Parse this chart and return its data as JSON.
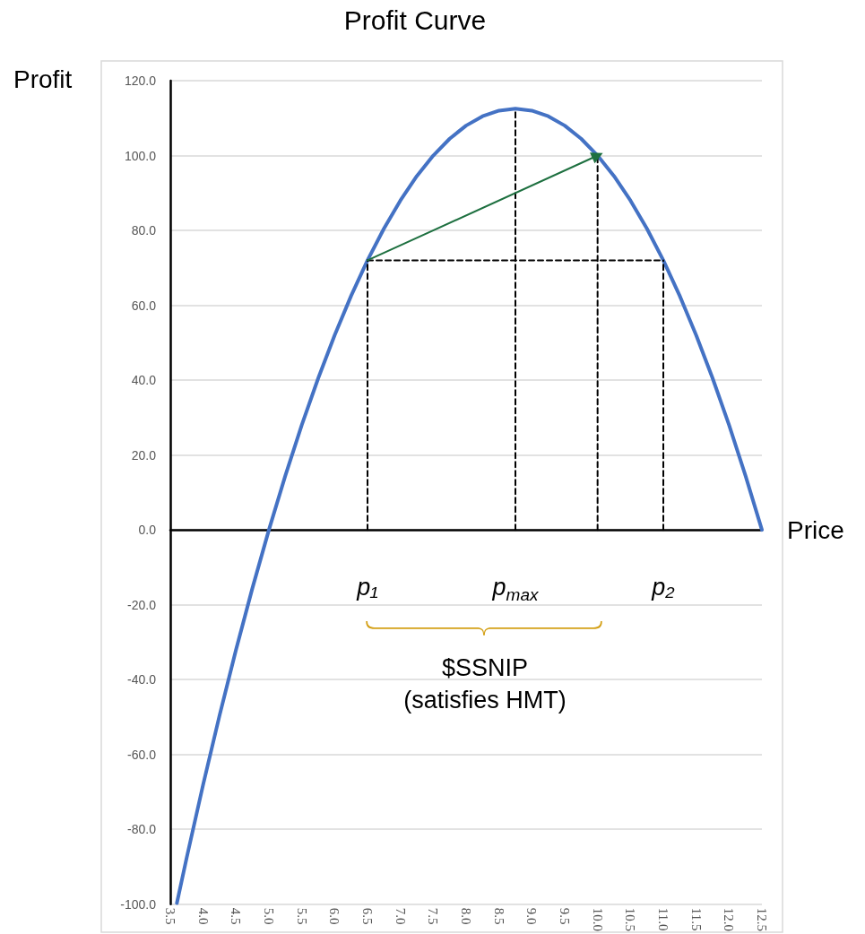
{
  "chart_data": {
    "type": "line",
    "title": "Profit Curve",
    "xlabel": "Price",
    "ylabel": "Profit",
    "xlim": [
      3.5,
      12.5
    ],
    "xticks": [
      3.5,
      {
        "value": 4,
        "label": "4.0"
      },
      4.5,
      {
        "value": 5,
        "label": "5.0"
      },
      5.5,
      {
        "value": 6,
        "label": "6.0"
      },
      6.5,
      {
        "value": 7,
        "label": "7.0"
      },
      7.5,
      {
        "value": 8,
        "label": "8.0"
      },
      8.5,
      {
        "value": 9,
        "label": "9.0"
      },
      9.5,
      {
        "value": 10,
        "label": "10.0"
      },
      10.5,
      {
        "value": 11,
        "label": "11.0"
      },
      11.5,
      {
        "value": 12,
        "label": "12.0"
      },
      12.5
    ],
    "ylim": [
      -100,
      120
    ],
    "yticks": [
      {
        "value": -100,
        "label": "-100.0"
      },
      {
        "value": -80,
        "label": "-80.0"
      },
      {
        "value": -60,
        "label": "-60.0"
      },
      {
        "value": -40,
        "label": "-40.0"
      },
      {
        "value": -20,
        "label": "-20.0"
      },
      {
        "value": 0,
        "label": "0.0"
      },
      {
        "value": 20,
        "label": "20.0"
      },
      {
        "value": 40,
        "label": "40.0"
      },
      {
        "value": 60,
        "label": "60.0"
      },
      {
        "value": 80,
        "label": "80.0"
      },
      {
        "value": 100,
        "label": "100.0"
      },
      {
        "value": 120,
        "label": "120.0"
      }
    ],
    "grid": "y",
    "series": [
      {
        "color": "#4472c4",
        "line_style": "solid",
        "x": [
          3.6,
          3.75,
          4,
          4.25,
          4.5,
          4.75,
          5,
          5.25,
          5.5,
          5.75,
          6,
          6.25,
          6.5,
          6.75,
          7,
          7.25,
          7.5,
          7.75,
          8,
          8.25,
          8.5,
          8.75,
          9,
          9.25,
          9.5,
          9.75,
          10,
          10.25,
          10.5,
          10.75,
          11,
          11.25,
          11.5,
          11.75,
          12,
          12.25,
          12.5
        ],
        "values": [
          -99.7,
          -87.5,
          -68,
          -49.5,
          -32,
          -15.5,
          0,
          14.5,
          28,
          40.5,
          52,
          62.5,
          72,
          80.5,
          88,
          94.5,
          100,
          104.5,
          108,
          110.5,
          112,
          112.5,
          112,
          110.5,
          108,
          104.5,
          100,
          94.5,
          88,
          80.5,
          72,
          62.5,
          52,
          40.5,
          28,
          14.5,
          0
        ]
      },
      {
        "color": "#000000",
        "line_style": "dashed",
        "x": [
          6.5,
          6.5
        ],
        "values": [
          0,
          72
        ]
      },
      {
        "color": "#000000",
        "line_style": "dashed",
        "x": [
          8.75,
          8.75
        ],
        "values": [
          0,
          112.5
        ]
      },
      {
        "color": "#000000",
        "line_style": "dashed",
        "x": [
          10,
          10
        ],
        "values": [
          0,
          100
        ]
      },
      {
        "color": "#000000",
        "line_style": "dashed",
        "x": [
          11,
          11
        ],
        "values": [
          0,
          72
        ]
      },
      {
        "color": "#000000",
        "line_style": "dashed",
        "x": [
          6.5,
          11
        ],
        "values": [
          72,
          72
        ]
      },
      {
        "color": "#1e7040",
        "line_style": "solid",
        "marker": "triangle",
        "x": [
          6.5,
          10
        ],
        "values": [
          72,
          100
        ]
      }
    ],
    "annotations": [
      "p₁",
      "p$_{max}$",
      "p₂",
      "$SSNIP\n(satisfies HMT)"
    ]
  }
}
